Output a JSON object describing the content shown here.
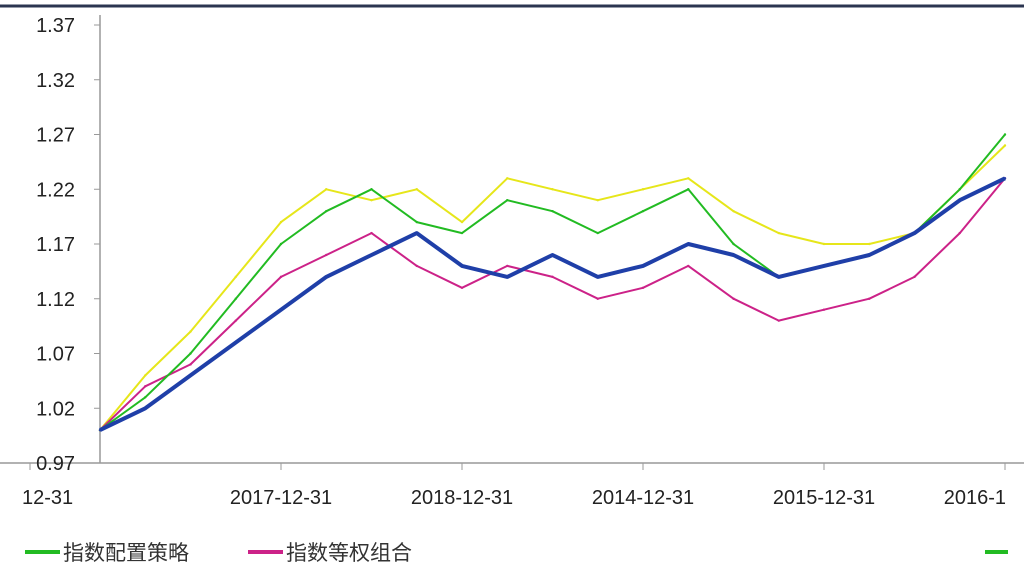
{
  "chart_data": {
    "type": "line",
    "title": "",
    "xlabel": "",
    "ylabel": "",
    "ylim": [
      0.97,
      1.37
    ],
    "yticks": [
      "1.37",
      "1.32",
      "1.27",
      "1.22",
      "1.17",
      "1.12",
      "1.07",
      "1.02",
      "0.97"
    ],
    "xticks": [
      "2014-12-31",
      "2015-12-31",
      "2016-1",
      "2017-12-31",
      "2018-12-31",
      "12-31"
    ],
    "x": [
      0,
      0.05,
      0.1,
      0.15,
      0.2,
      0.25,
      0.3,
      0.35,
      0.4,
      0.45,
      0.5,
      0.55,
      0.6,
      0.65,
      0.7,
      0.75,
      0.8,
      0.85,
      0.9,
      0.95,
      1.0
    ],
    "series": [
      {
        "name": "指数配置策略",
        "color": "#22bb22",
        "values": [
          1.0,
          1.03,
          1.07,
          1.12,
          1.17,
          1.2,
          1.22,
          1.19,
          1.18,
          1.21,
          1.2,
          1.18,
          1.2,
          1.22,
          1.17,
          1.14,
          1.15,
          1.16,
          1.18,
          1.22,
          1.27
        ]
      },
      {
        "name": "指数等权组合",
        "color": "#cc2288",
        "values": [
          1.0,
          1.04,
          1.06,
          1.1,
          1.14,
          1.16,
          1.18,
          1.15,
          1.13,
          1.15,
          1.14,
          1.12,
          1.13,
          1.15,
          1.12,
          1.1,
          1.11,
          1.12,
          1.14,
          1.18,
          1.23
        ]
      },
      {
        "name": "",
        "color": "#1f3fa8",
        "values": [
          1.0,
          1.02,
          1.05,
          1.08,
          1.11,
          1.14,
          1.16,
          1.18,
          1.15,
          1.14,
          1.16,
          1.14,
          1.15,
          1.17,
          1.16,
          1.14,
          1.15,
          1.16,
          1.18,
          1.21,
          1.23
        ]
      },
      {
        "name": "",
        "color": "#e6e61a",
        "values": [
          1.0,
          1.05,
          1.09,
          1.14,
          1.19,
          1.22,
          1.21,
          1.22,
          1.19,
          1.23,
          1.22,
          1.21,
          1.22,
          1.23,
          1.2,
          1.18,
          1.17,
          1.17,
          1.18,
          1.22,
          1.26
        ]
      }
    ],
    "grid": false,
    "legend_position": "bottom",
    "legend": [
      "指数配置策略",
      "指数等权组合"
    ]
  }
}
